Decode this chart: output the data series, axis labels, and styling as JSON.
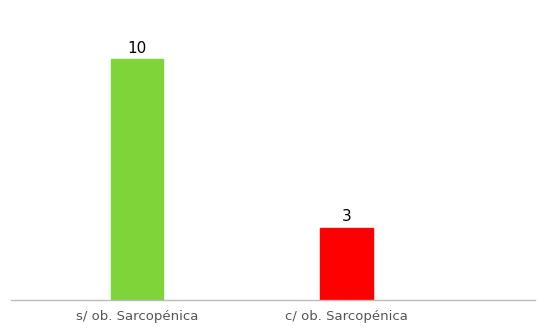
{
  "categories": [
    "s/ ob. Sarcopénica",
    "c/ ob. Sarcopénica"
  ],
  "values": [
    10,
    3
  ],
  "bar_colors": [
    "#7FD43A",
    "#FF0000"
  ],
  "bar_width": 0.25,
  "x_positions": [
    1,
    2
  ],
  "xlim": [
    0.4,
    2.9
  ],
  "ylim": [
    0,
    12
  ],
  "value_labels": [
    "10",
    "3"
  ],
  "value_label_fontsize": 11,
  "tick_label_fontsize": 9.5,
  "background_color": "#ffffff",
  "axes_edge_color": "#bbbbbb",
  "label_color": "#555555"
}
